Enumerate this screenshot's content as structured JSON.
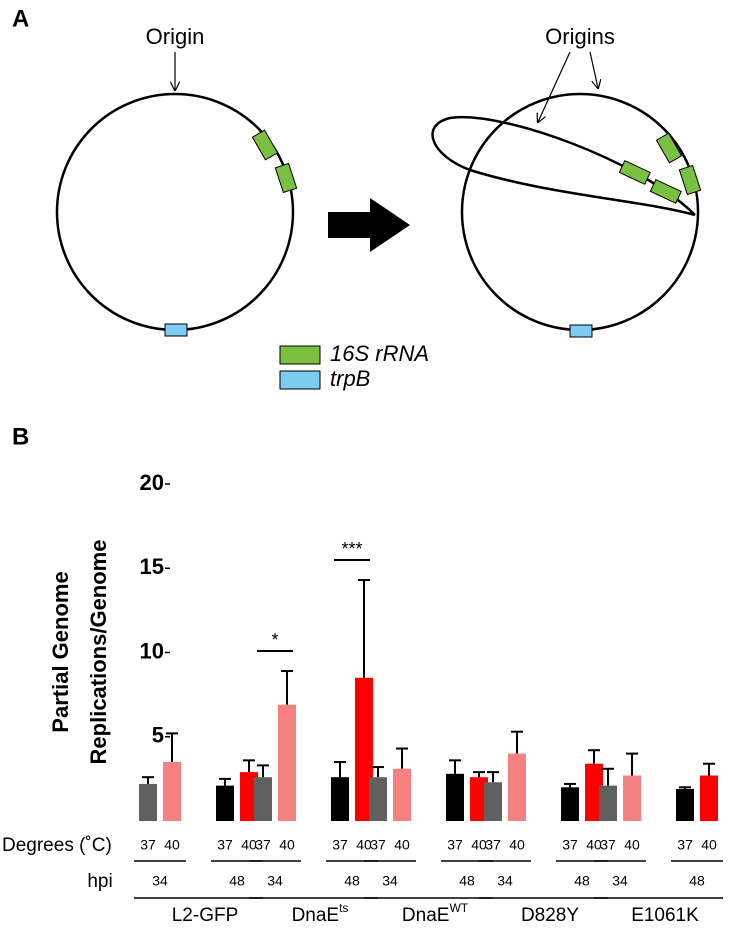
{
  "panel_a": {
    "label": "A",
    "origin": "Origin",
    "origins": "Origins",
    "legend": [
      {
        "text": "16S rRNA",
        "color": "#7ac142"
      },
      {
        "text": "trpB",
        "color": "#7ecdf0"
      }
    ]
  },
  "panel_b_label": "B",
  "chart_data": {
    "type": "bar",
    "y_label": [
      "Partial Genome",
      "Replications/Genome"
    ],
    "row_labels": {
      "temp": "Degrees (˚C)",
      "hpi": "hpi"
    },
    "groups": [
      {
        "label": "L2-GFP"
      },
      {
        "label": "DnaE",
        "sup": "ts"
      },
      {
        "label": "DnaE",
        "sup": "WT"
      },
      {
        "label": "D828Y"
      },
      {
        "label": "E1061K"
      }
    ],
    "series": [
      {
        "temp": "37",
        "hpi": "34",
        "color": "#606060",
        "values": [
          2.2,
          2.6,
          2.6,
          2.3,
          2.1
        ],
        "errors": [
          0.4,
          0.7,
          0.6,
          0.6,
          1.0
        ]
      },
      {
        "temp": "40",
        "hpi": "34",
        "color": "#f48080",
        "values": [
          3.5,
          6.9,
          3.1,
          4.0,
          2.7
        ],
        "errors": [
          1.7,
          2.0,
          1.2,
          1.3,
          1.3
        ]
      },
      {
        "temp": "37",
        "hpi": "48",
        "color": "#000000",
        "values": [
          2.1,
          2.6,
          2.8,
          2.0,
          1.9
        ],
        "errors": [
          0.4,
          0.9,
          0.8,
          0.2,
          0.1
        ]
      },
      {
        "temp": "40",
        "hpi": "48",
        "color": "#ff0000",
        "values": [
          2.9,
          8.5,
          2.6,
          3.4,
          2.7
        ],
        "errors": [
          0.7,
          5.8,
          0.3,
          0.8,
          0.7
        ]
      }
    ],
    "annotations": [
      {
        "text": "*",
        "group": 1,
        "pair": 0
      },
      {
        "text": "***",
        "group": 1,
        "pair": 1
      }
    ],
    "ylim": [
      0,
      20
    ],
    "yticks": [
      5,
      10,
      15,
      20
    ]
  }
}
